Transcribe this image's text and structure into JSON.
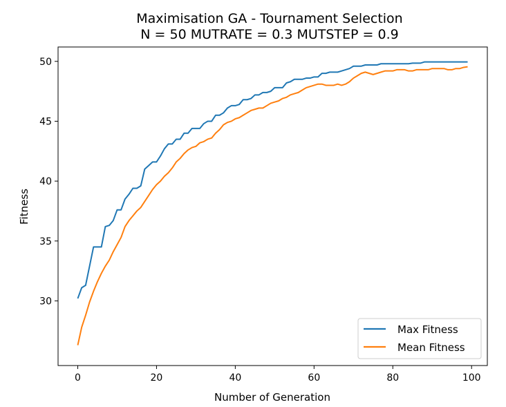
{
  "chart_data": {
    "type": "line",
    "title": "Maximisation GA - Tournament Selection",
    "subtitle": "N = 50 MUTRATE = 0.3 MUTSTEP = 0.9",
    "xlabel": "Number of Generation",
    "ylabel": "Fitness",
    "xlim": [
      -5,
      104
    ],
    "ylim": [
      24.6,
      51.2
    ],
    "xticks": [
      0,
      20,
      40,
      60,
      80,
      100
    ],
    "yticks": [
      30,
      35,
      40,
      45,
      50
    ],
    "grid": false,
    "legend_position": "lower-right",
    "series": [
      {
        "name": "Max Fitness",
        "color": "#1f77b4",
        "values": [
          30.2,
          31.1,
          31.3,
          32.9,
          34.5,
          34.5,
          34.5,
          36.2,
          36.3,
          36.7,
          37.6,
          37.6,
          38.5,
          38.9,
          39.4,
          39.4,
          39.6,
          41.0,
          41.3,
          41.6,
          41.6,
          42.1,
          42.7,
          43.1,
          43.1,
          43.5,
          43.5,
          44.0,
          44.0,
          44.4,
          44.4,
          44.4,
          44.8,
          45.0,
          45.0,
          45.5,
          45.5,
          45.7,
          46.1,
          46.3,
          46.3,
          46.4,
          46.8,
          46.8,
          46.9,
          47.2,
          47.2,
          47.4,
          47.4,
          47.5,
          47.8,
          47.8,
          47.8,
          48.2,
          48.3,
          48.5,
          48.5,
          48.5,
          48.6,
          48.6,
          48.7,
          48.7,
          49.0,
          49.0,
          49.1,
          49.1,
          49.1,
          49.2,
          49.3,
          49.4,
          49.6,
          49.6,
          49.6,
          49.7,
          49.7,
          49.7,
          49.7,
          49.8,
          49.8,
          49.8,
          49.8,
          49.8,
          49.8,
          49.8,
          49.8,
          49.85,
          49.85,
          49.85,
          49.95,
          49.95,
          49.95,
          49.95,
          49.95,
          49.95,
          49.95,
          49.95,
          49.95,
          49.95,
          49.95,
          49.95
        ]
      },
      {
        "name": "Mean Fitness",
        "color": "#ff7f0e",
        "values": [
          26.3,
          27.8,
          28.8,
          29.9,
          30.8,
          31.6,
          32.3,
          32.9,
          33.4,
          34.1,
          34.7,
          35.3,
          36.2,
          36.7,
          37.1,
          37.5,
          37.8,
          38.3,
          38.8,
          39.3,
          39.7,
          40.0,
          40.4,
          40.7,
          41.1,
          41.6,
          41.9,
          42.3,
          42.6,
          42.8,
          42.9,
          43.2,
          43.3,
          43.5,
          43.6,
          44.0,
          44.3,
          44.7,
          44.9,
          45.0,
          45.2,
          45.3,
          45.5,
          45.7,
          45.9,
          46.0,
          46.1,
          46.1,
          46.3,
          46.5,
          46.6,
          46.7,
          46.9,
          47.0,
          47.2,
          47.3,
          47.4,
          47.6,
          47.8,
          47.9,
          48.0,
          48.1,
          48.1,
          48.0,
          48.0,
          48.0,
          48.1,
          48.0,
          48.1,
          48.3,
          48.6,
          48.8,
          49.0,
          49.1,
          49.0,
          48.9,
          49.0,
          49.1,
          49.2,
          49.2,
          49.2,
          49.3,
          49.3,
          49.3,
          49.2,
          49.2,
          49.3,
          49.3,
          49.3,
          49.3,
          49.4,
          49.4,
          49.4,
          49.4,
          49.3,
          49.3,
          49.4,
          49.4,
          49.5,
          49.55
        ]
      }
    ]
  }
}
